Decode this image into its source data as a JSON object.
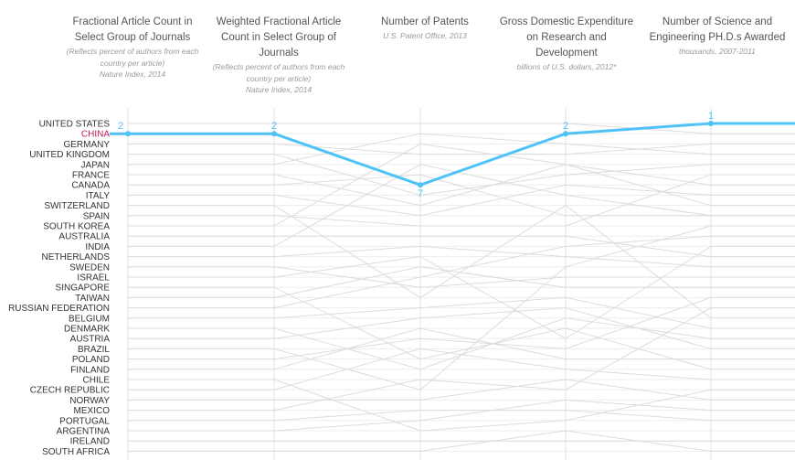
{
  "colors": {
    "highlight": "#4fc3f7",
    "highlight_text": "#c2185b",
    "grid": "#e0e0e0",
    "lines": "#dcdcdc",
    "label": "#333333"
  },
  "columns": [
    {
      "title": "Fractional Article Count in Select Group of Journals",
      "subtitle": "(Reflects percent of authors from each country per article)",
      "source": "Nature Index, 2014"
    },
    {
      "title": "Weighted Fractional Article Count in Select Group of Journals",
      "subtitle": "(Reflects percent of authors from each country per article)",
      "source": "Nature Index, 2014"
    },
    {
      "title": "Number of Patents",
      "subtitle": "",
      "source": "U.S. Patent Office, 2013"
    },
    {
      "title": "Gross Domestic Expenditure on Research and Development",
      "subtitle": "",
      "source": "billions of U.S. dollars, 2012*"
    },
    {
      "title": "Number of Science and Engineering PH.D.s Awarded",
      "subtitle": "",
      "source": "thousands, 2007-2011"
    }
  ],
  "chart_data": {
    "type": "line",
    "countries": [
      "UNITED STATES",
      "CHINA",
      "GERMANY",
      "UNITED KINGDOM",
      "JAPAN",
      "FRANCE",
      "CANADA",
      "ITALY",
      "SWITZERLAND",
      "SPAIN",
      "SOUTH KOREA",
      "AUSTRALIA",
      "INDIA",
      "NETHERLANDS",
      "SWEDEN",
      "ISRAEL",
      "SINGAPORE",
      "TAIWAN",
      "RUSSIAN FEDERATION",
      "BELGIUM",
      "DENMARK",
      "AUSTRIA",
      "BRAZIL",
      "POLAND",
      "FINLAND",
      "CHILE",
      "CZECH REPUBLIC",
      "NORWAY",
      "MEXICO",
      "PORTUGAL",
      "ARGENTINA",
      "IRELAND",
      "SOUTH AFRICA"
    ],
    "highlighted": "CHINA",
    "highlighted_ranks": [
      2,
      2,
      7,
      2,
      1
    ],
    "background_ranks": [
      [
        1,
        1,
        1,
        1,
        2
      ],
      [
        3,
        3,
        4,
        4,
        3
      ],
      [
        4,
        4,
        8,
        6,
        5
      ],
      [
        5,
        5,
        2,
        3,
        4
      ],
      [
        6,
        6,
        9,
        5,
        7
      ],
      [
        7,
        7,
        6,
        10,
        10
      ],
      [
        8,
        8,
        10,
        7,
        8
      ],
      [
        9,
        9,
        18,
        9,
        20
      ],
      [
        10,
        10,
        11,
        11,
        6
      ],
      [
        11,
        11,
        3,
        5,
        9
      ],
      [
        12,
        12,
        12,
        12,
        14
      ],
      [
        13,
        13,
        5,
        8,
        10
      ],
      [
        14,
        14,
        13,
        14,
        15
      ],
      [
        15,
        15,
        17,
        16,
        16
      ],
      [
        16,
        16,
        14,
        22,
        13
      ],
      [
        17,
        17,
        24,
        21,
        25
      ],
      [
        18,
        18,
        15,
        17,
        17
      ],
      [
        19,
        19,
        16,
        13,
        12
      ],
      [
        20,
        20,
        19,
        18,
        21
      ],
      [
        21,
        21,
        25,
        20,
        22
      ],
      [
        22,
        22,
        20,
        19,
        23
      ],
      [
        23,
        23,
        27,
        15,
        11
      ],
      [
        24,
        24,
        22,
        23,
        18
      ],
      [
        25,
        25,
        21,
        24,
        24
      ],
      [
        26,
        26,
        31,
        30,
        27
      ],
      [
        27,
        27,
        23,
        25,
        26
      ],
      [
        28,
        28,
        28,
        26,
        28
      ],
      [
        29,
        29,
        26,
        27,
        19
      ],
      [
        30,
        30,
        29,
        29,
        30
      ],
      [
        31,
        31,
        30,
        28,
        29
      ],
      [
        32,
        32,
        32,
        32,
        32
      ],
      [
        33,
        33,
        33,
        31,
        33
      ]
    ]
  }
}
